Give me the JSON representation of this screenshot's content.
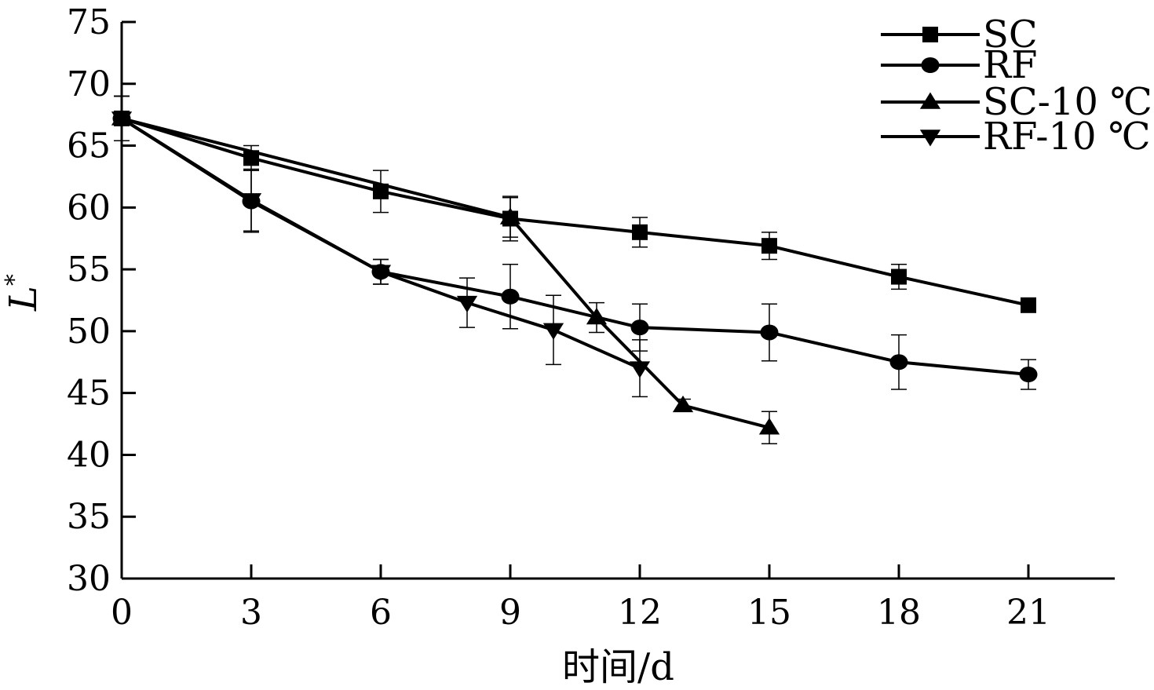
{
  "chart_data": {
    "type": "line",
    "title": "",
    "xlabel": "时间/d",
    "ylabel": "L",
    "ylabel_superscript": "*",
    "xlim": [
      0,
      23
    ],
    "ylim": [
      30,
      75
    ],
    "x_ticks": [
      0,
      3,
      6,
      9,
      12,
      15,
      18,
      21
    ],
    "y_ticks": [
      30,
      35,
      40,
      45,
      50,
      55,
      60,
      65,
      70,
      75
    ],
    "grid": false,
    "legend_position": "top-right",
    "series": [
      {
        "name": "SC",
        "marker": "square",
        "x": [
          0,
          3,
          6,
          9,
          12,
          15,
          18,
          21
        ],
        "y": [
          67.2,
          64.0,
          61.3,
          59.1,
          58.0,
          56.9,
          54.4,
          52.1
        ],
        "error": [
          1.8,
          1.0,
          1.7,
          1.8,
          1.2,
          1.1,
          1.0,
          0.3
        ]
      },
      {
        "name": "RF",
        "marker": "circle",
        "x": [
          0,
          3,
          6,
          9,
          12,
          15,
          18,
          21
        ],
        "y": [
          67.2,
          60.5,
          54.8,
          52.8,
          50.3,
          49.9,
          47.5,
          46.5
        ],
        "error": [
          1.8,
          2.5,
          1.0,
          2.6,
          1.9,
          2.3,
          2.2,
          1.2
        ]
      },
      {
        "name": "SC-10 ℃",
        "marker": "triangle-up",
        "x": [
          0,
          9,
          11,
          13,
          15
        ],
        "y": [
          67.2,
          59.2,
          51.1,
          44.0,
          42.2
        ],
        "error": [
          1.8,
          1.6,
          1.2,
          0.5,
          1.3
        ]
      },
      {
        "name": "RF-10 ℃",
        "marker": "triangle-down",
        "x": [
          0,
          3,
          6,
          8,
          10,
          12
        ],
        "y": [
          67.2,
          60.6,
          54.8,
          52.3,
          50.1,
          47.0
        ],
        "error": [
          1.8,
          2.5,
          1.0,
          2.0,
          2.8,
          2.3
        ]
      }
    ]
  }
}
